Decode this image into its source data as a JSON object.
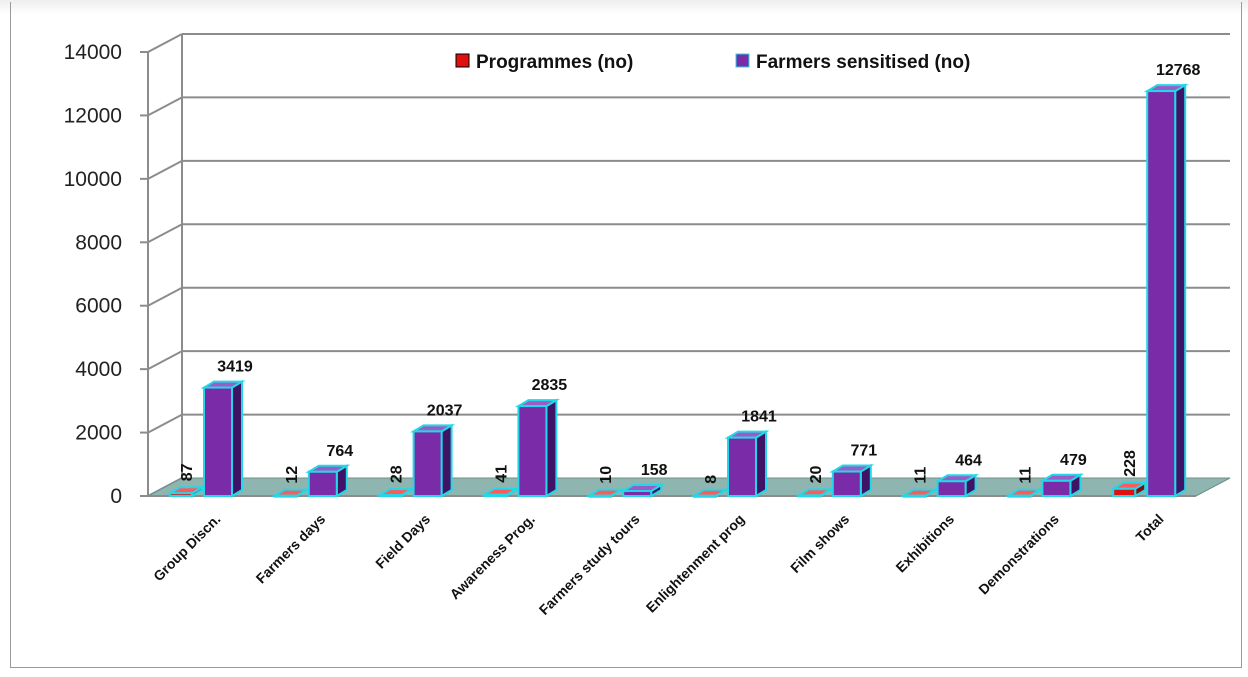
{
  "chart_data": {
    "type": "bar",
    "title": "",
    "xlabel": "",
    "ylabel": "",
    "ylim": [
      0,
      14000
    ],
    "yticks": [
      0,
      2000,
      4000,
      6000,
      8000,
      10000,
      12000,
      14000
    ],
    "grid": true,
    "legend_position": "top",
    "categories": [
      "Group Discn.",
      "Farmers days",
      "Field Days",
      "Awareness Prog.",
      "Farmers study tours",
      "Enlightenment prog",
      "Film shows",
      "Exhibitions",
      "Demonstrations",
      "Total"
    ],
    "series": [
      {
        "name": "Programmes (no)",
        "color": "#e01010",
        "values": [
          87,
          12,
          28,
          41,
          10,
          8,
          20,
          11,
          11,
          228
        ]
      },
      {
        "name": "Farmers sensitised (no)",
        "color": "#7a2ca8",
        "values": [
          3419,
          764,
          2037,
          2835,
          158,
          1841,
          771,
          464,
          479,
          12768
        ]
      }
    ],
    "edge_color": "#22d8e8",
    "floor_color": "#8fb5b0"
  }
}
